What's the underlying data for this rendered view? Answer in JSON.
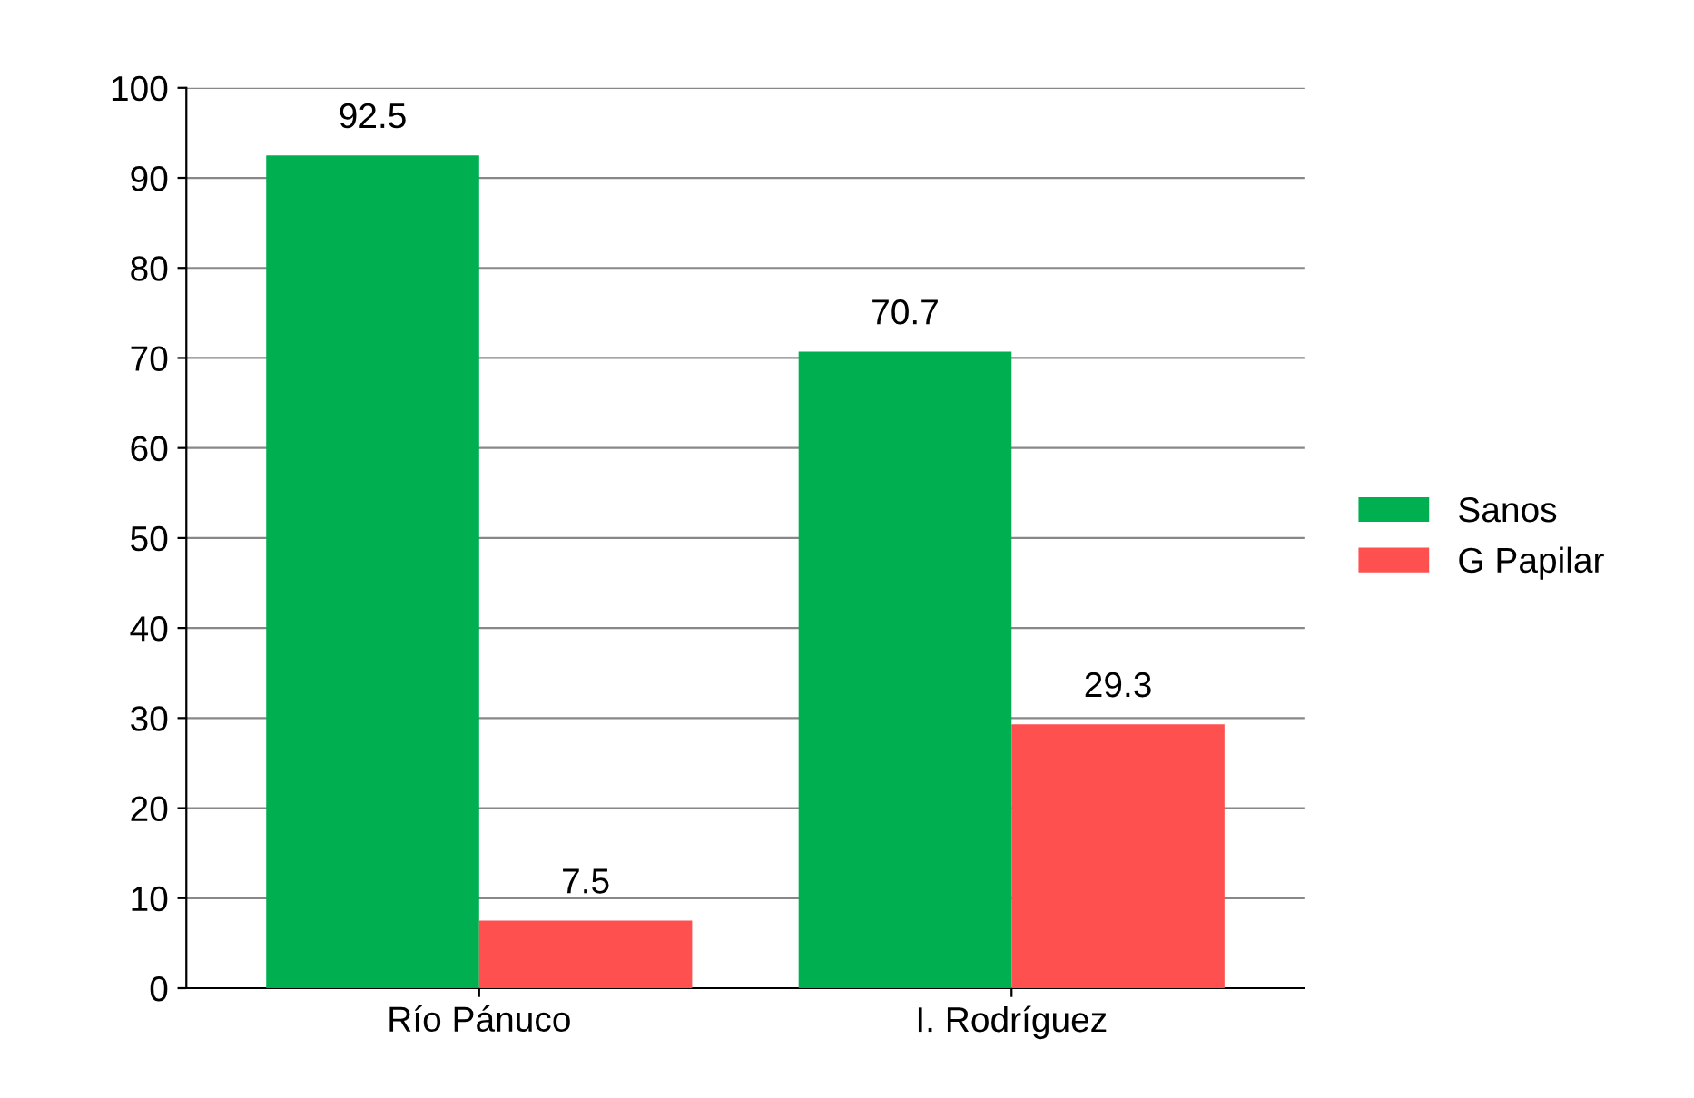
{
  "chart_data": {
    "type": "bar",
    "categories": [
      "Río Pánuco",
      "I. Rodríguez"
    ],
    "series": [
      {
        "name": "Sanos",
        "color": "#00b050",
        "values": [
          92.5,
          70.7
        ]
      },
      {
        "name": "G Papilar",
        "color": "#ff5050",
        "values": [
          7.5,
          29.3
        ]
      }
    ],
    "ylim": [
      0,
      100
    ],
    "yticks": [
      0,
      10,
      20,
      30,
      40,
      50,
      60,
      70,
      80,
      90,
      100
    ],
    "grid": "y",
    "legend": "right",
    "data_labels": true
  }
}
